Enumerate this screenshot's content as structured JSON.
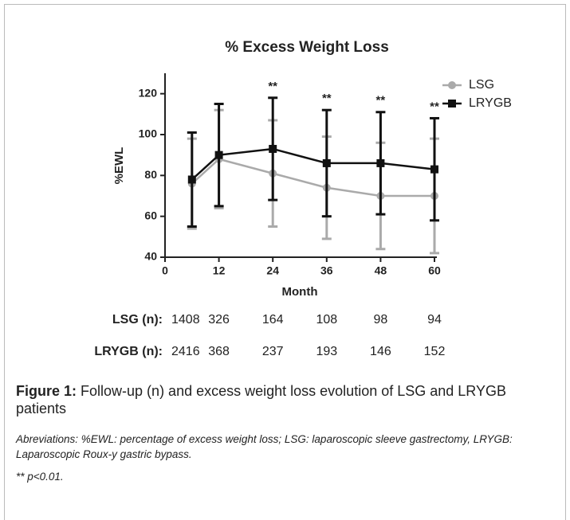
{
  "chart_data": {
    "type": "line",
    "title": "% Excess Weight Loss",
    "x_label": "Month",
    "y_label": "%EWL",
    "x": [
      6,
      12,
      24,
      36,
      48,
      60
    ],
    "series": [
      {
        "name": "LSG",
        "color": "#aaaaaa",
        "marker": "circle",
        "values": [
          76,
          88,
          81,
          74,
          70,
          70
        ],
        "errors": [
          22,
          24,
          26,
          25,
          26,
          28
        ]
      },
      {
        "name": "LRYGB",
        "color": "#111111",
        "marker": "square",
        "values": [
          78,
          90,
          93,
          86,
          86,
          83
        ],
        "errors": [
          23,
          25,
          25,
          26,
          25,
          25
        ]
      }
    ],
    "annotations": [
      {
        "x": 24,
        "label": "**"
      },
      {
        "x": 36,
        "label": "**"
      },
      {
        "x": 48,
        "label": "**"
      },
      {
        "x": 60,
        "label": "**"
      }
    ],
    "xlim": [
      0,
      60
    ],
    "xticks": [
      0,
      12,
      24,
      36,
      48,
      60
    ],
    "ylim": [
      40,
      130
    ],
    "yticks": [
      40,
      60,
      80,
      100,
      120
    ],
    "legend": "upper right"
  },
  "table": {
    "rows": [
      {
        "label": "LSG (n):",
        "values": [
          1408,
          326,
          164,
          108,
          98,
          94
        ]
      },
      {
        "label": "LRYGB (n):",
        "values": [
          2416,
          368,
          237,
          193,
          146,
          152
        ]
      }
    ]
  },
  "caption": {
    "label": "Figure 1:",
    "text": "Follow-up (n) and excess weight loss evolution of LSG and LRYGB patients",
    "abbreviations": "Abreviations: %EWL: percentage of excess weight loss; LSG: laparoscopic sleeve gastrectomy, LRYGB: Laparoscopic Roux-y gastric bypass.",
    "note": "** p<0.01."
  }
}
